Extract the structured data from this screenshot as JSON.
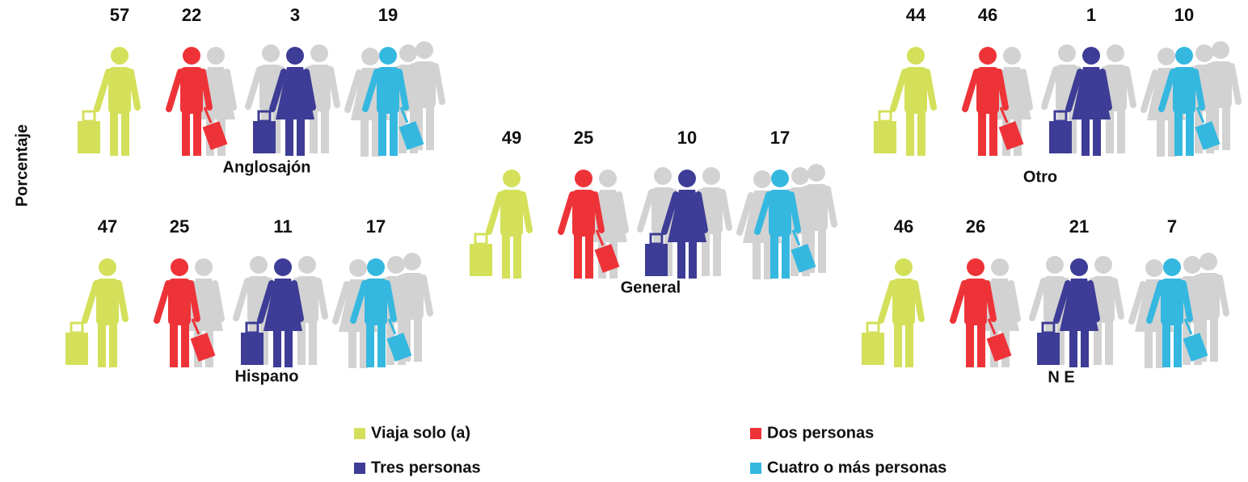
{
  "chart_data": {
    "type": "pictogram",
    "y_label": "Porcentaje",
    "categories": [
      "Anglosajón",
      "Hispano",
      "General",
      "Otro",
      "N E"
    ],
    "series": [
      {
        "name": "Viaja solo (a)",
        "color": "#d4e05a",
        "values": [
          57,
          47,
          49,
          44,
          46
        ]
      },
      {
        "name": "Dos personas",
        "color": "#ee3338",
        "values": [
          22,
          25,
          25,
          46,
          26
        ]
      },
      {
        "name": "Tres personas",
        "color": "#3d3c96",
        "values": [
          3,
          11,
          10,
          1,
          21
        ]
      },
      {
        "name": "Cuatro o más personas",
        "color": "#35b8e0",
        "values": [
          19,
          17,
          17,
          10,
          7
        ]
      }
    ]
  }
}
